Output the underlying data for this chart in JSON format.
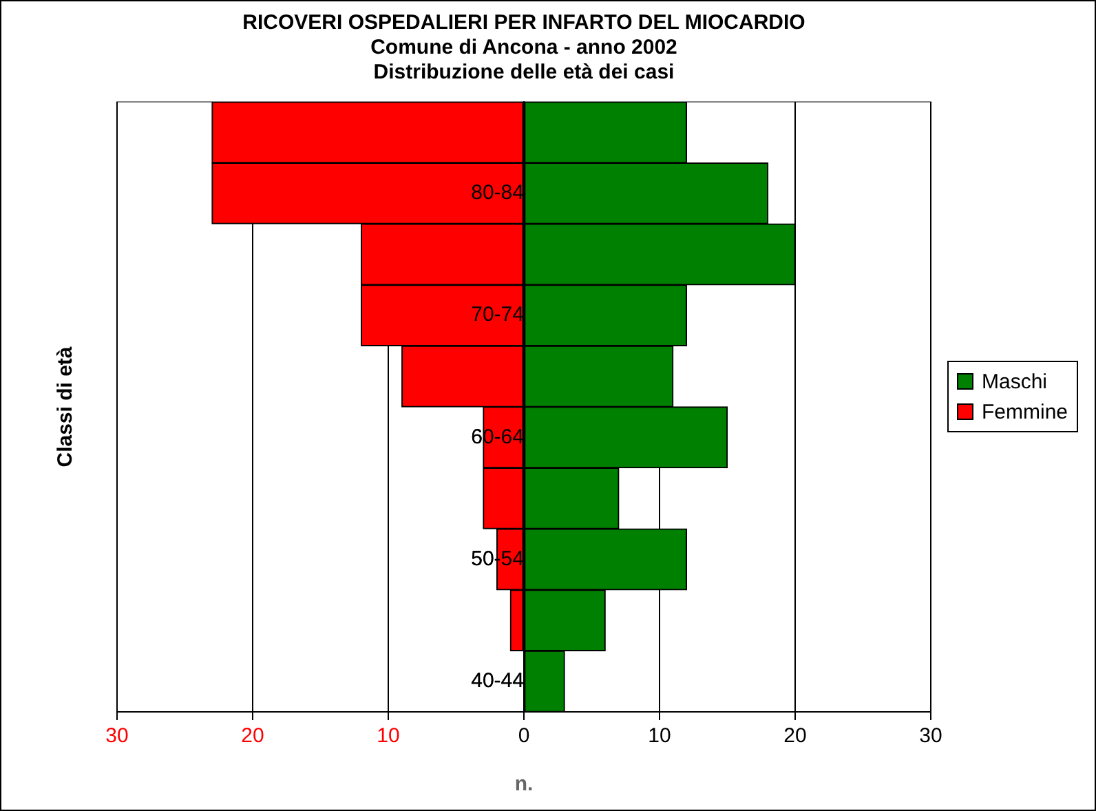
{
  "chart_data": {
    "type": "bar",
    "orientation": "horizontal",
    "stacked": true,
    "title": [
      "RICOVERI OSPEDALIERI PER INFARTO DEL MIOCARDIO",
      "Comune di Ancona - anno 2002",
      "Distribuzione delle età dei casi"
    ],
    "xlabel": "n.",
    "ylabel": "Classi di età",
    "categories": [
      null,
      "80-84",
      null,
      "70-74",
      null,
      "60-64",
      null,
      "50-54",
      null,
      "40-44"
    ],
    "series": [
      {
        "name": "Maschi",
        "color": "#008000",
        "values": [
          12,
          18,
          20,
          12,
          11,
          15,
          7,
          12,
          6,
          3
        ]
      },
      {
        "name": "Femmine",
        "color": "#ff0000",
        "values": [
          -23,
          -23,
          -12,
          -12,
          -9,
          -3,
          -3,
          -2,
          -1,
          0
        ]
      }
    ],
    "xlim": [
      -30,
      30
    ],
    "xticks": [
      {
        "value": -30,
        "label": "30"
      },
      {
        "value": -20,
        "label": "20"
      },
      {
        "value": -10,
        "label": "10"
      },
      0,
      10,
      20,
      30
    ],
    "grid": "x",
    "legend": "right"
  }
}
